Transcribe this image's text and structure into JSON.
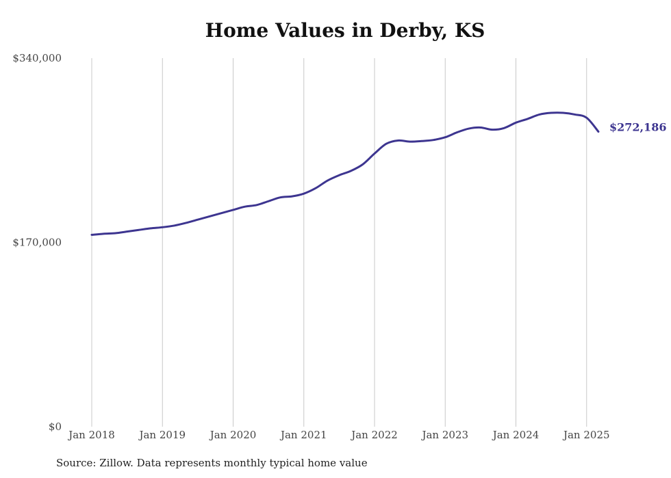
{
  "title": "Home Values in Derby, KS",
  "source": "Source: Zillow. Data represents monthly typical home value",
  "colors": {
    "line": "#3d3590",
    "grid": "#c8c8c8",
    "text": "#444444"
  },
  "chart_data": {
    "type": "line",
    "title": "Home Values in Derby, KS",
    "xlabel": "",
    "ylabel": "",
    "ylim": [
      0,
      340000
    ],
    "yticks": [
      0,
      170000,
      340000
    ],
    "ytick_labels": [
      "$0",
      "$170,000",
      "$340,000"
    ],
    "xticks": [
      "2018-01",
      "2019-01",
      "2020-01",
      "2021-01",
      "2022-01",
      "2023-01",
      "2024-01",
      "2025-01"
    ],
    "xtick_labels": [
      "Jan 2018",
      "Jan 2019",
      "Jan 2020",
      "Jan 2021",
      "Jan 2022",
      "Jan 2023",
      "Jan 2024",
      "Jan 2025"
    ],
    "grid": "vertical",
    "end_label": "$272,186",
    "series": [
      {
        "x": [
          "2018-01",
          "2018-03",
          "2018-05",
          "2018-07",
          "2018-09",
          "2018-11",
          "2019-01",
          "2019-03",
          "2019-05",
          "2019-07",
          "2019-09",
          "2019-11",
          "2020-01",
          "2020-03",
          "2020-05",
          "2020-07",
          "2020-09",
          "2020-11",
          "2021-01",
          "2021-03",
          "2021-05",
          "2021-07",
          "2021-09",
          "2021-11",
          "2022-01",
          "2022-03",
          "2022-05",
          "2022-07",
          "2022-09",
          "2022-11",
          "2023-01",
          "2023-03",
          "2023-05",
          "2023-07",
          "2023-09",
          "2023-11",
          "2024-01",
          "2024-03",
          "2024-05",
          "2024-07",
          "2024-09",
          "2024-11",
          "2025-01",
          "2025-03"
        ],
        "values": [
          177000,
          178000,
          178500,
          180000,
          181500,
          183000,
          184000,
          185500,
          188000,
          191000,
          194000,
          197000,
          200000,
          203000,
          204500,
          208000,
          211500,
          212500,
          215000,
          220000,
          227000,
          232000,
          236000,
          242000,
          252000,
          261000,
          264000,
          263000,
          263500,
          264500,
          267000,
          271500,
          275000,
          276000,
          274000,
          275500,
          280500,
          284000,
          288000,
          289500,
          289500,
          288000,
          285000,
          272186
        ]
      }
    ]
  }
}
